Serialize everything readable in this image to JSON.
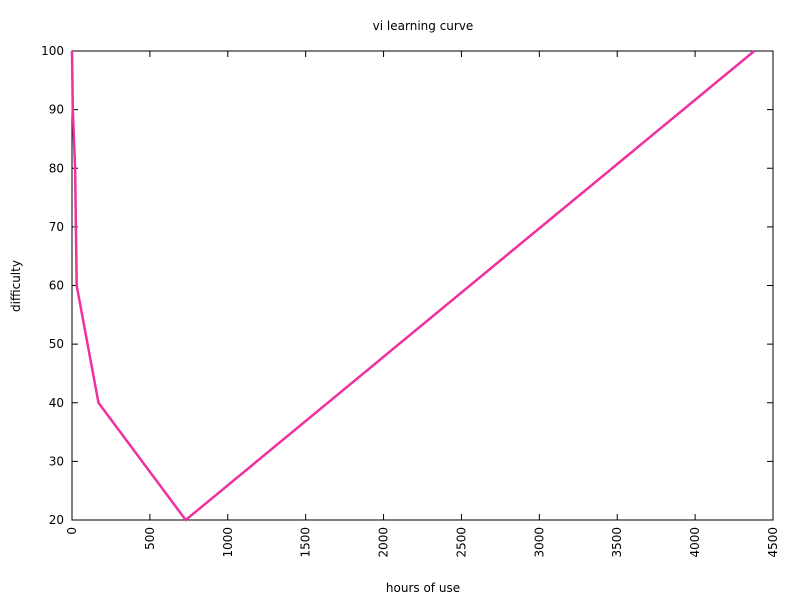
{
  "chart_data": {
    "type": "line",
    "title": "vi learning curve",
    "xlabel": "hours of use",
    "ylabel": "difficulty",
    "xlim": [
      0,
      4500
    ],
    "ylim": [
      20,
      100
    ],
    "xticks": [
      0,
      500,
      1000,
      1500,
      2000,
      2500,
      3000,
      3500,
      4000,
      4500
    ],
    "yticks": [
      20,
      30,
      40,
      50,
      60,
      70,
      80,
      90,
      100
    ],
    "grid": false,
    "legend": "none",
    "series": [
      {
        "color": "#f0309f",
        "points": [
          {
            "x": 0,
            "y": 100
          },
          {
            "x": 5,
            "y": 90
          },
          {
            "x": 20,
            "y": 80
          },
          {
            "x": 25,
            "y": 70
          },
          {
            "x": 30,
            "y": 60
          },
          {
            "x": 170,
            "y": 40
          },
          {
            "x": 730,
            "y": 20
          },
          {
            "x": 4380,
            "y": 100
          }
        ]
      }
    ]
  }
}
